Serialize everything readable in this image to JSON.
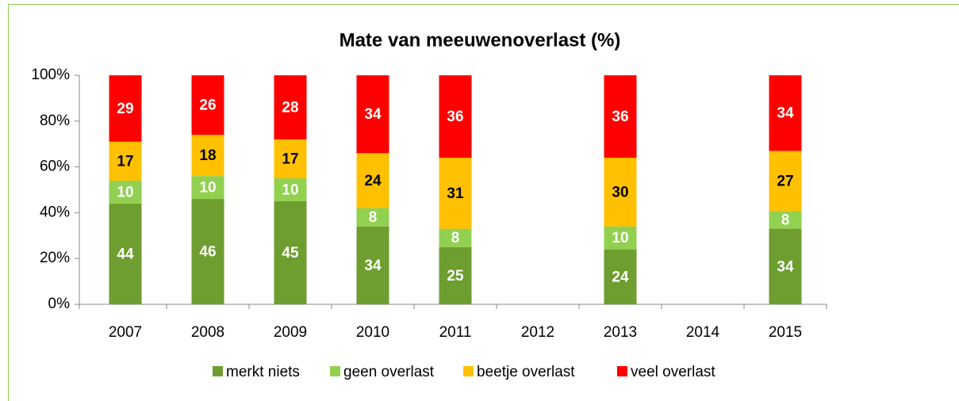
{
  "chart_data": {
    "type": "bar",
    "stacking": "percent",
    "title": "Mate van meeuwenoverlast  (%)",
    "categories": [
      "2007",
      "2008",
      "2009",
      "2010",
      "2011",
      "2012",
      "2013",
      "2014",
      "2015"
    ],
    "series": [
      {
        "name": "merkt niets",
        "color": "#6e9e2f",
        "label_color": "#ffffff",
        "values": [
          44,
          46,
          45,
          34,
          25,
          null,
          24,
          null,
          34
        ]
      },
      {
        "name": "geen overlast",
        "color": "#92d050",
        "label_color": "#ffffff",
        "values": [
          10,
          10,
          10,
          8,
          8,
          null,
          10,
          null,
          8
        ]
      },
      {
        "name": "beetje overlast",
        "color": "#ffc000",
        "label_color": "#000000",
        "values": [
          17,
          18,
          17,
          24,
          31,
          null,
          30,
          null,
          27
        ]
      },
      {
        "name": "veel overlast",
        "color": "#ff0000",
        "label_color": "#ffffff",
        "values": [
          29,
          26,
          28,
          34,
          36,
          null,
          36,
          null,
          34
        ]
      }
    ],
    "ylim": [
      0,
      100
    ],
    "yticks": [
      {
        "value": 0,
        "label": "0%"
      },
      {
        "value": 20,
        "label": "20%"
      },
      {
        "value": 40,
        "label": "40%"
      },
      {
        "value": 60,
        "label": "60%"
      },
      {
        "value": 80,
        "label": "80%"
      },
      {
        "value": 100,
        "label": "100%"
      }
    ],
    "grid": false,
    "legend": "bottom"
  }
}
